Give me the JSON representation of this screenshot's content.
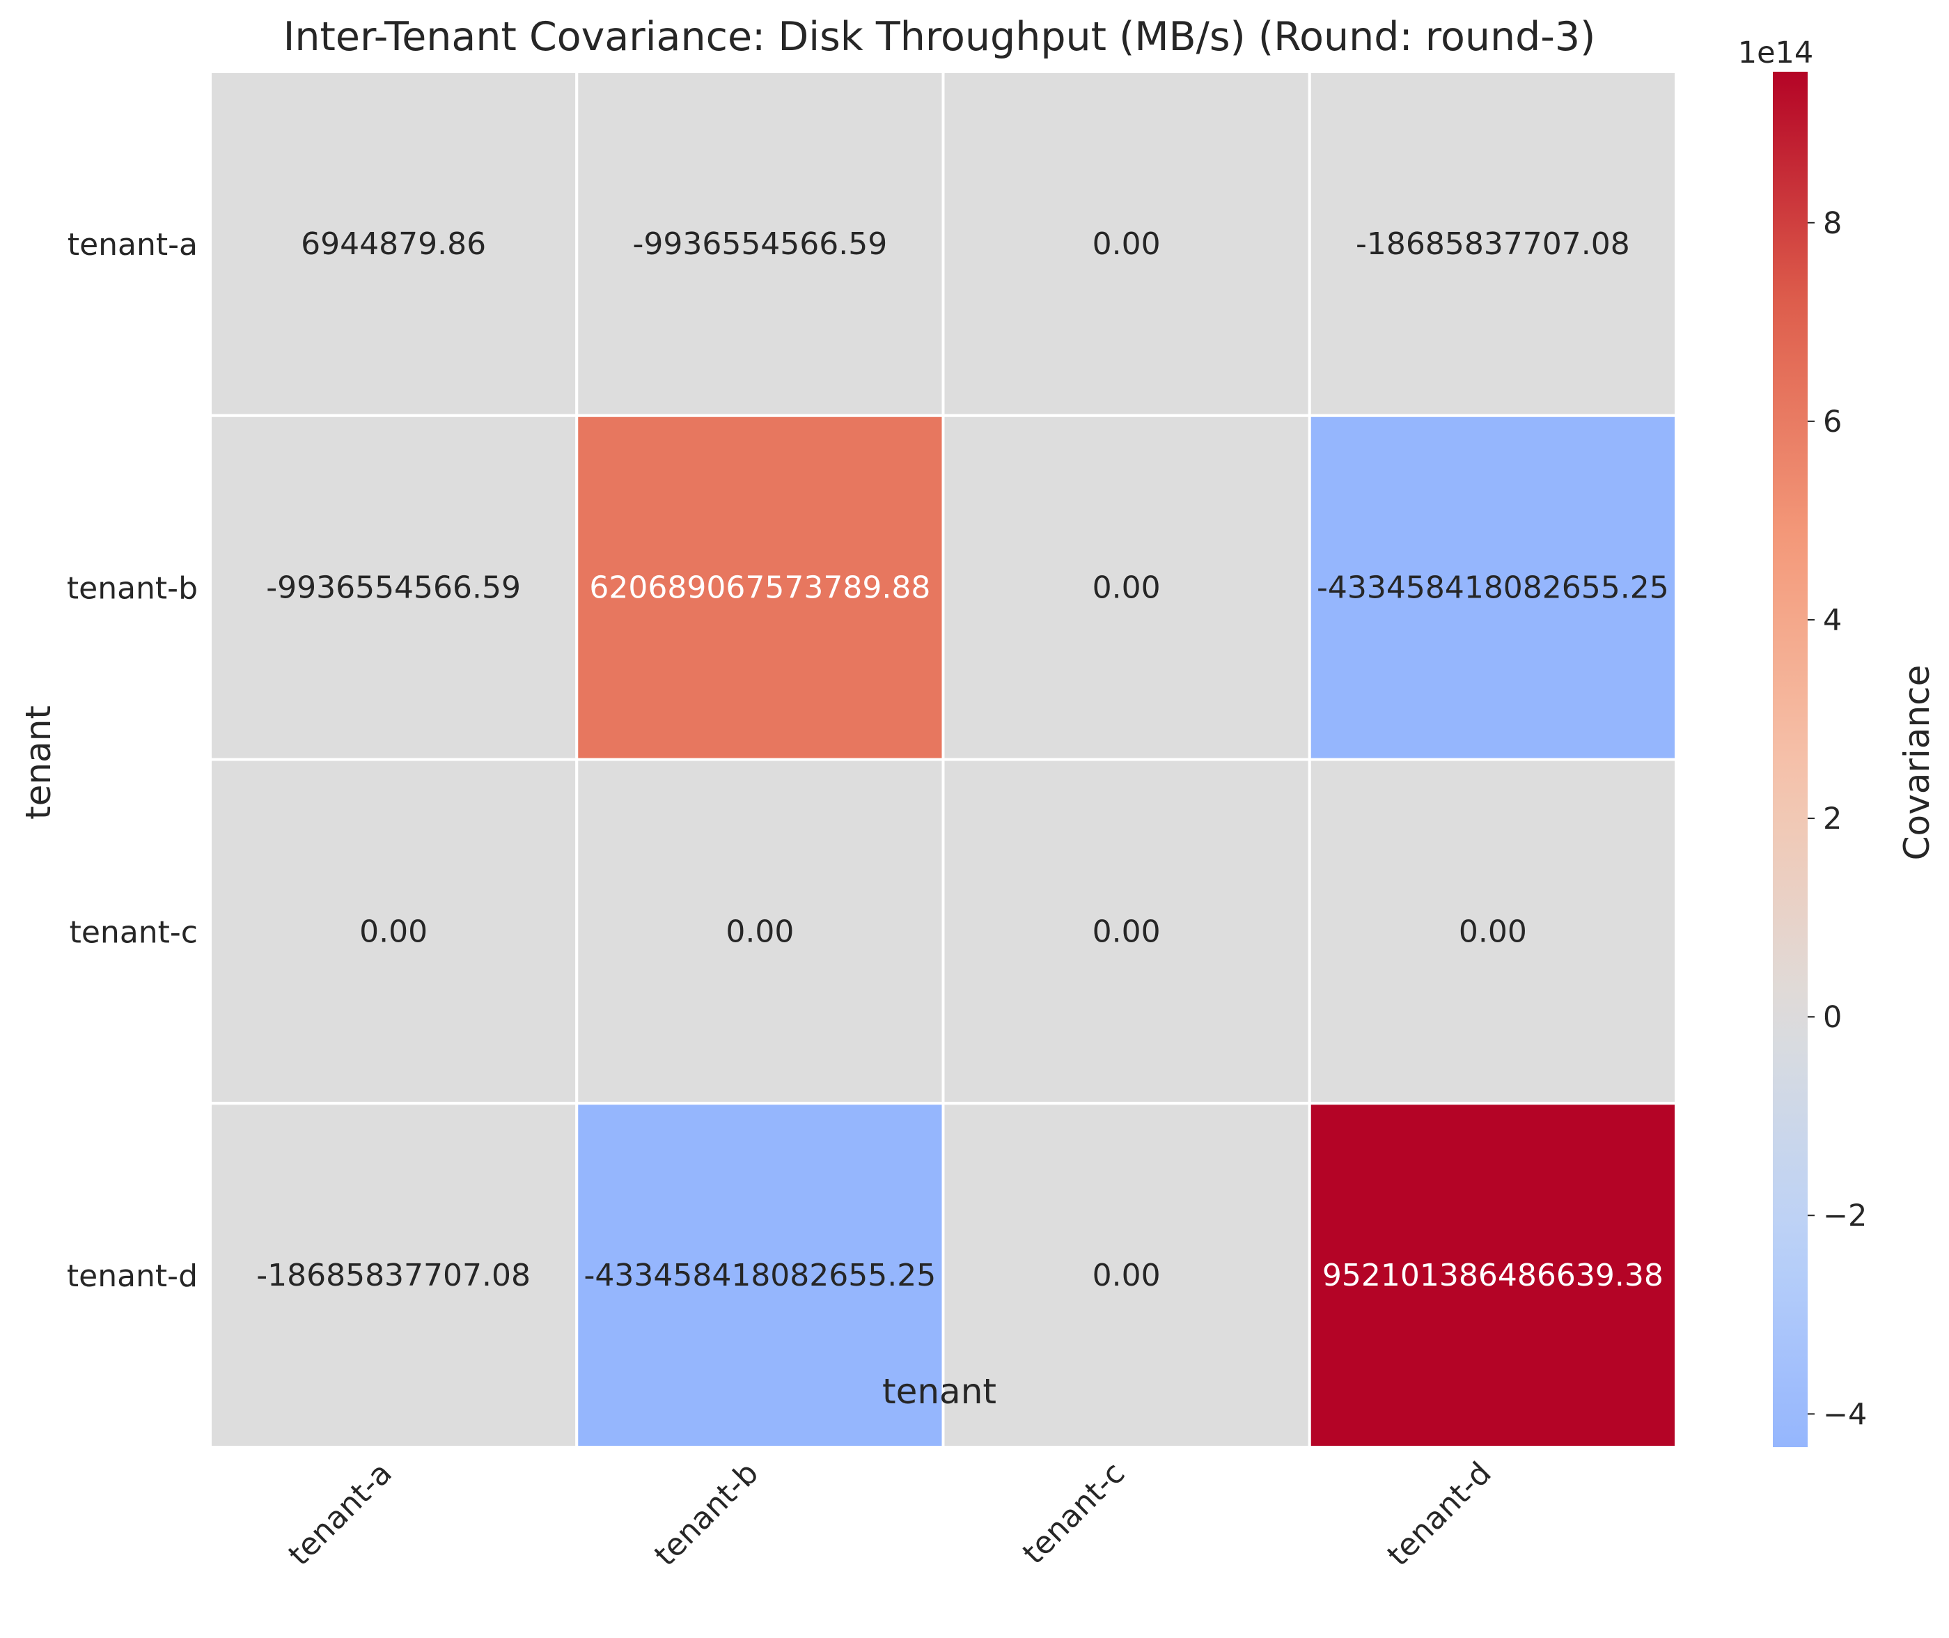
{
  "chart_data": {
    "type": "heatmap",
    "title": "Inter-Tenant Covariance: Disk Throughput (MB/s) (Round: round-3)",
    "xlabel": "tenant",
    "ylabel": "tenant",
    "x_categories": [
      "tenant-a",
      "tenant-b",
      "tenant-c",
      "tenant-d"
    ],
    "y_categories": [
      "tenant-a",
      "tenant-b",
      "tenant-c",
      "tenant-d"
    ],
    "values": [
      [
        6944879.86,
        -9936554566.59,
        0.0,
        -18685837707.08
      ],
      [
        -9936554566.59,
        620689067573789.9,
        0.0,
        -433458418082655.25
      ],
      [
        0.0,
        0.0,
        0.0,
        0.0
      ],
      [
        -18685837707.08,
        -433458418082655.25,
        0.0,
        952101386486639.4
      ]
    ],
    "cell_labels": [
      [
        "6944879.86",
        "-9936554566.59",
        "0.00",
        "-18685837707.08"
      ],
      [
        "-9936554566.59",
        "620689067573789.88",
        "0.00",
        "-433458418082655.25"
      ],
      [
        "0.00",
        "0.00",
        "0.00",
        "0.00"
      ],
      [
        "-18685837707.08",
        "-433458418082655.25",
        "0.00",
        "952101386486639.38"
      ]
    ],
    "colormap": "coolwarm",
    "center": 0,
    "colorbar": {
      "label": "Covariance",
      "range": [
        -433458418082655.25,
        952101386486639.4
      ],
      "offset_label": "1e14",
      "ticks": [
        -4,
        -2,
        0,
        2,
        4,
        6,
        8
      ],
      "tick_labels": [
        "−4",
        "−2",
        "0",
        "2",
        "4",
        "6",
        "8"
      ],
      "tick_scale": 100000000000000
    },
    "grid": false,
    "legend": "colorbar-right"
  }
}
